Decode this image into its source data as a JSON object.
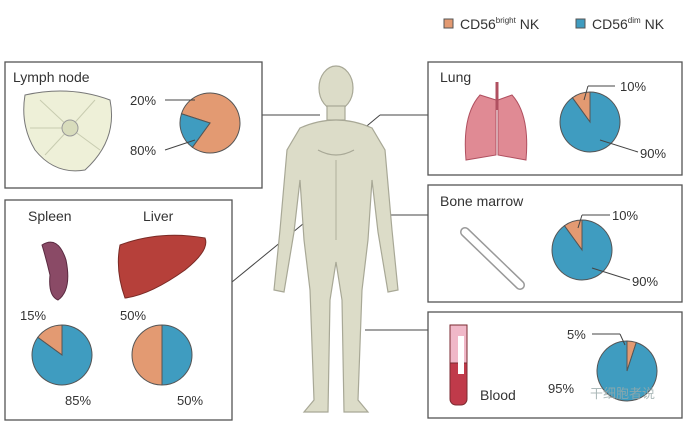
{
  "colors": {
    "bright": "#e39a72",
    "dim": "#3f9cc0",
    "outline": "#555555"
  },
  "legend": [
    {
      "base": "CD56",
      "sup": "bright",
      "suffix": " NK",
      "color": "#e39a72"
    },
    {
      "base": "CD56",
      "sup": "dim",
      "suffix": " NK",
      "color": "#3f9cc0"
    }
  ],
  "tissues": {
    "lymph_node": {
      "label": "Lymph node",
      "bright": 80,
      "dim": 20,
      "bright_label": "80%",
      "dim_label": "20%"
    },
    "spleen": {
      "label": "Spleen",
      "bright": 15,
      "dim": 85,
      "bright_label": "15%",
      "dim_label": "85%"
    },
    "liver": {
      "label": "Liver",
      "bright": 50,
      "dim": 50,
      "bright_label": "50%",
      "dim_label": "50%"
    },
    "lung": {
      "label": "Lung",
      "bright": 10,
      "dim": 90,
      "bright_label": "10%",
      "dim_label": "90%"
    },
    "bone_marrow": {
      "label": "Bone marrow",
      "bright": 10,
      "dim": 90,
      "bright_label": "10%",
      "dim_label": "90%"
    },
    "blood": {
      "label": "Blood",
      "bright": 5,
      "dim": 95,
      "bright_label": "5%",
      "dim_label": "95%"
    }
  },
  "watermark": "干细胞者说"
}
